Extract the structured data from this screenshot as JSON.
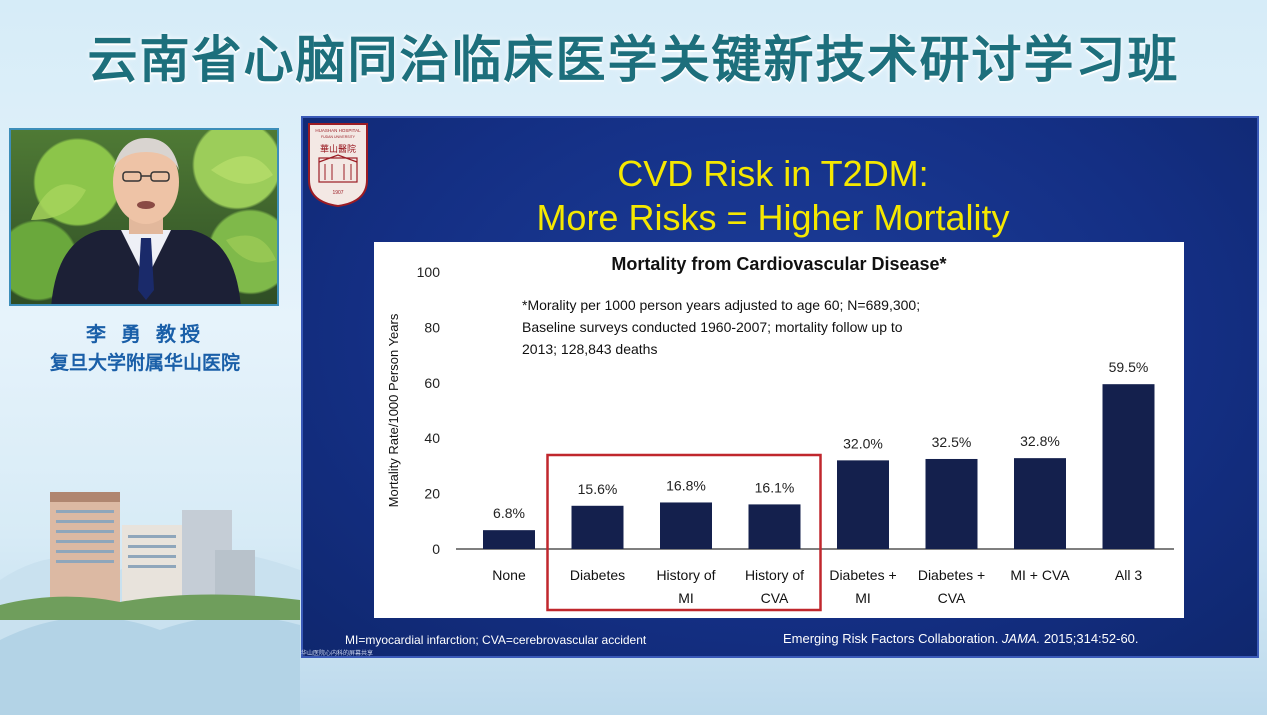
{
  "banner": {
    "title": "云南省心脑同治临床医学关键新技术研讨学习班"
  },
  "speaker": {
    "name": "李 勇 教授",
    "org": "复旦大学附属华山医院"
  },
  "slide": {
    "title_line1": "CVD Risk in T2DM:",
    "title_line2": "More Risks = Higher Mortality",
    "logo_text_top": "HUASHAN HOSPITAL",
    "logo_text_sub": "FUDAN UNIVERSITY",
    "logo_text_cn": "華山醫院",
    "logo_year": "1907",
    "footer_left": "MI=myocardial infarction; CVA=cerebrovascular accident",
    "footer_right_pre": "Emerging Risk Factors Collaboration. ",
    "footer_right_journal": "JAMA.",
    "footer_right_post": " 2015;314:52-60.",
    "caption": "华山医院心内科的屏幕共享"
  },
  "chart_data": {
    "type": "bar",
    "title": "Mortality from Cardiovascular Disease*",
    "ylabel": "Mortality Rate/1000 Person Years",
    "xlabel": "",
    "ylim": [
      0,
      100
    ],
    "yticks": [
      0,
      20,
      40,
      60,
      80,
      100
    ],
    "categories": [
      [
        "None"
      ],
      [
        "Diabetes"
      ],
      [
        "History of",
        "MI"
      ],
      [
        "History of",
        "CVA"
      ],
      [
        "Diabetes +",
        "MI"
      ],
      [
        "Diabetes +",
        "CVA"
      ],
      [
        "MI + CVA"
      ],
      [
        "All 3"
      ]
    ],
    "values": [
      6.8,
      15.6,
      16.8,
      16.1,
      32.0,
      32.5,
      32.8,
      59.5
    ],
    "value_labels": [
      "6.8%",
      "15.6%",
      "16.8%",
      "16.1%",
      "32.0%",
      "32.5%",
      "32.8%",
      "59.5%"
    ],
    "note": [
      "*Morality per 1000 person years adjusted to age 60; N=689,300;",
      "Baseline surveys conducted 1960-2007; mortality follow up to",
      "2013; 128,843 deaths"
    ],
    "highlight": [
      1,
      3
    ],
    "colors": {
      "bar": "#14204d",
      "highlight": "#c0272d",
      "axis": "#555555"
    }
  }
}
